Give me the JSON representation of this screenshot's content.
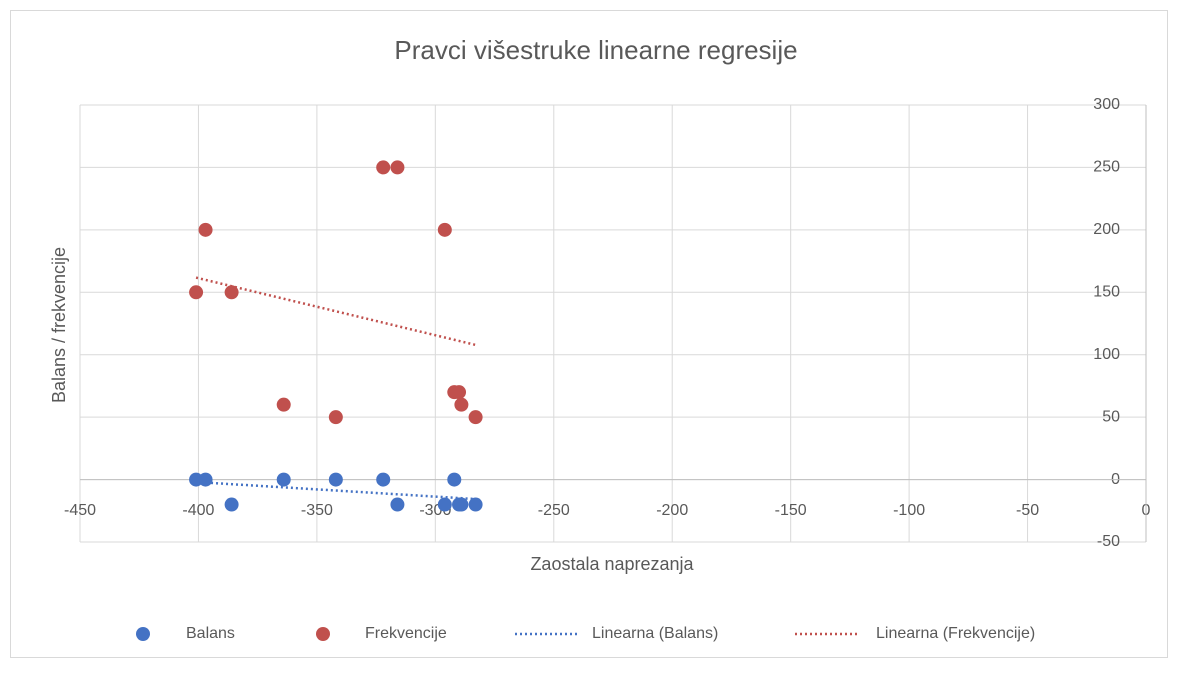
{
  "chart_data": {
    "type": "scatter",
    "title": "Pravci višestruke linearne regresije",
    "x_label": "Zaostala naprezanja",
    "y_label": "Balans / frekvencije",
    "xlim": [
      -450,
      0
    ],
    "xticks": [
      -450,
      -400,
      -350,
      -300,
      -250,
      -200,
      -150,
      -100,
      -50,
      0
    ],
    "ylim": [
      -50,
      300
    ],
    "yticks": [
      -50,
      0,
      50,
      100,
      150,
      200,
      250,
      300
    ],
    "grid": true,
    "legend": "bottom",
    "series": [
      {
        "name": "Balans",
        "color": "#4472c4",
        "trendline": "Linearna (Balans)",
        "x": [
          -401,
          -397,
          -386,
          -364,
          -342,
          -322,
          -316,
          -296,
          -292,
          -290,
          -289,
          -283
        ],
        "values": [
          0,
          0,
          -20,
          0,
          0,
          0,
          -20,
          -20,
          0,
          -20,
          -20,
          -20
        ]
      },
      {
        "name": "Frekvencije",
        "color": "#c0504d",
        "trendline": "Linearna (Frekvencije)",
        "x": [
          -401,
          -397,
          -386,
          -364,
          -342,
          -322,
          -316,
          -296,
          -292,
          -290,
          -289,
          -283
        ],
        "values": [
          150,
          200,
          150,
          60,
          50,
          250,
          250,
          200,
          70,
          70,
          60,
          50
        ]
      }
    ]
  }
}
